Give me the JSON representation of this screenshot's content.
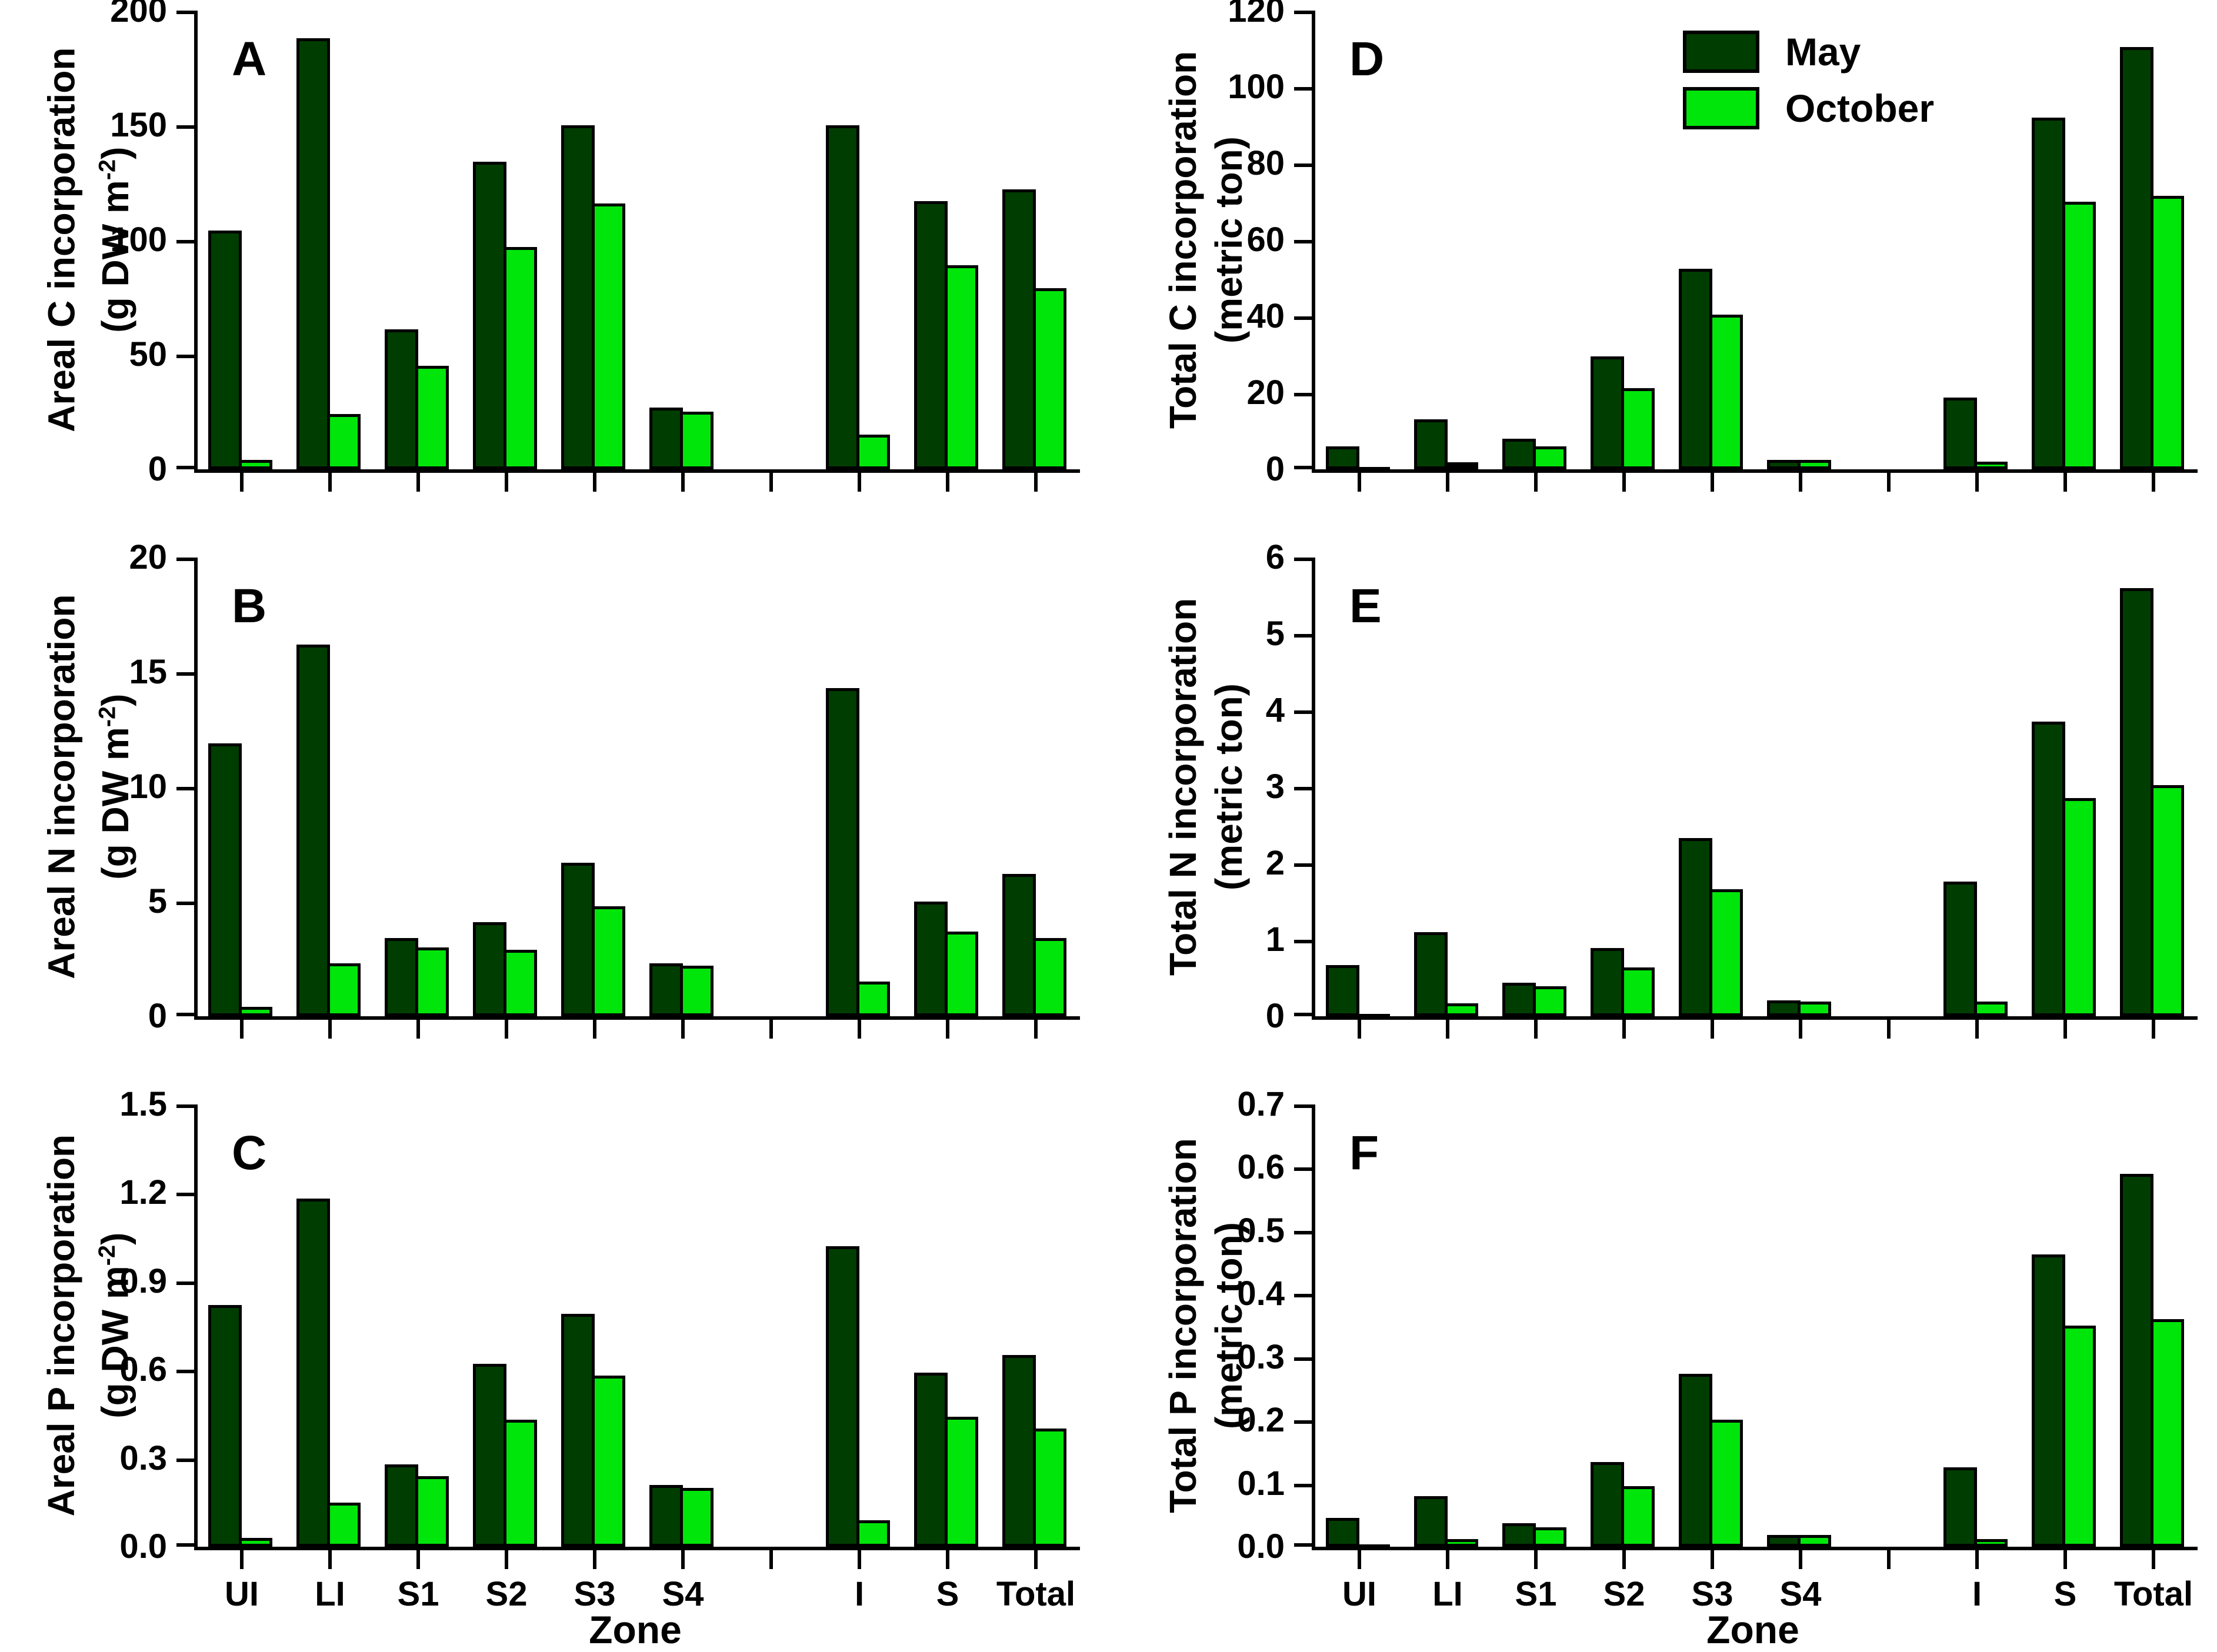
{
  "legend": {
    "items": [
      {
        "label": "May",
        "color": "#003d00"
      },
      {
        "label": "October",
        "color": "#00e60a"
      }
    ]
  },
  "chart_data": {
    "type": "bar",
    "xlabel": "Zone",
    "categories": [
      "UI",
      "LI",
      "S1",
      "S2",
      "S3",
      "S4",
      "I",
      "S",
      "Total"
    ],
    "slot_labels": [
      "UI",
      "LI",
      "S1",
      "S2",
      "S3",
      "S4",
      "",
      "I",
      "S",
      "Total"
    ],
    "series_names": [
      "May",
      "October"
    ],
    "series_colors": {
      "may": "#003d00",
      "october": "#00e60a"
    },
    "legend_position": "top of panel D",
    "grid": "off",
    "panels": [
      {
        "letter": "A",
        "ylabel": "Areal C incorporation",
        "unit_pre": "(g DW m",
        "unit_sup": "-2",
        "unit_post": ")",
        "ymax": 200,
        "ylim": [
          0,
          200
        ],
        "yticks": [
          "200",
          "150",
          "100",
          "50",
          "0"
        ],
        "may": [
          104,
          188,
          61,
          134,
          150,
          27,
          null,
          150,
          117,
          122
        ],
        "october": [
          4,
          24,
          45,
          97,
          116,
          25,
          null,
          15,
          89,
          79
        ]
      },
      {
        "letter": "B",
        "ylabel": "Areal N incorporation",
        "unit_pre": "(g DW m",
        "unit_sup": "-2",
        "unit_post": ")",
        "ymax": 20,
        "ylim": [
          0,
          20
        ],
        "yticks": [
          "20",
          "15",
          "10",
          "5",
          "0"
        ],
        "may": [
          11.9,
          16.2,
          3.4,
          4.1,
          6.7,
          2.3,
          null,
          14.3,
          5.0,
          6.2
        ],
        "october": [
          0.4,
          2.3,
          3.0,
          2.9,
          4.8,
          2.2,
          null,
          1.5,
          3.7,
          3.4
        ]
      },
      {
        "letter": "C",
        "ylabel": "Areal P incorporation",
        "unit_pre": "(g DW m",
        "unit_sup": "-2",
        "unit_post": ")",
        "ymax": 1.5,
        "ylim": [
          0,
          1.5
        ],
        "yticks": [
          "1.5",
          "1.2",
          "0.9",
          "0.6",
          "0.3",
          "0.0"
        ],
        "may": [
          0.82,
          1.18,
          0.28,
          0.62,
          0.79,
          0.21,
          null,
          1.02,
          0.59,
          0.65
        ],
        "october": [
          0.03,
          0.15,
          0.24,
          0.43,
          0.58,
          0.2,
          null,
          0.09,
          0.44,
          0.4
        ]
      },
      {
        "letter": "D",
        "ylabel": "Total C incorporation",
        "unit_pre": "(metric ton",
        "unit_sup": "",
        "unit_post": ")",
        "ymax": 120,
        "ylim": [
          0,
          120
        ],
        "yticks": [
          "120",
          "100",
          "80",
          "60",
          "40",
          "20",
          "0"
        ],
        "may": [
          6,
          13,
          8,
          29.5,
          52.5,
          2.5,
          null,
          18.8,
          92,
          110.5
        ],
        "october": [
          0.3,
          1.8,
          6,
          21.3,
          40.5,
          2.4,
          null,
          2,
          70,
          71.5
        ]
      },
      {
        "letter": "E",
        "ylabel": "Total N incorporation",
        "unit_pre": "(metric ton",
        "unit_sup": "",
        "unit_post": ")",
        "ymax": 6,
        "ylim": [
          0,
          6
        ],
        "yticks": [
          "6",
          "5",
          "4",
          "3",
          "2",
          "1",
          "0"
        ],
        "may": [
          0.67,
          1.1,
          0.44,
          0.89,
          2.33,
          0.21,
          null,
          1.76,
          3.85,
          5.6
        ],
        "october": [
          0.03,
          0.17,
          0.39,
          0.64,
          1.66,
          0.19,
          null,
          0.19,
          2.85,
          3.02
        ]
      },
      {
        "letter": "F",
        "ylabel": "Total P incorporation",
        "unit_pre": "(metric ton",
        "unit_sup": "",
        "unit_post": ")",
        "ymax": 0.7,
        "ylim": [
          0,
          0.7
        ],
        "yticks": [
          "0.7",
          "0.6",
          "0.5",
          "0.4",
          "0.3",
          "0.2",
          "0.1",
          "0.0"
        ],
        "may": [
          0.046,
          0.08,
          0.037,
          0.134,
          0.274,
          0.019,
          null,
          0.126,
          0.463,
          0.59
        ],
        "october": [
          0.003,
          0.012,
          0.031,
          0.096,
          0.201,
          0.019,
          null,
          0.012,
          0.35,
          0.36
        ]
      }
    ]
  }
}
